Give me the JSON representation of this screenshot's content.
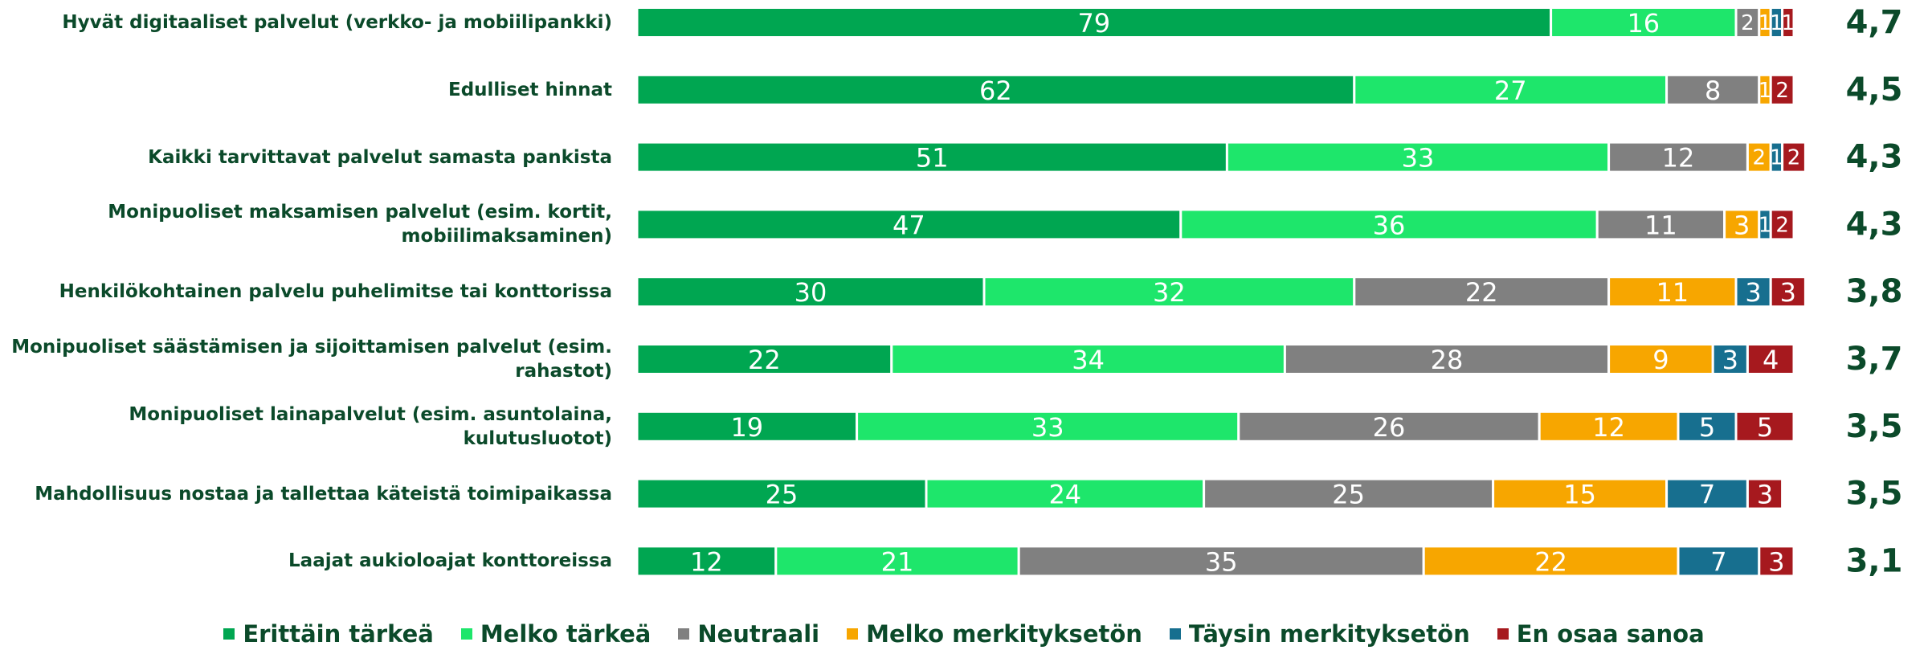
{
  "chart_data": {
    "type": "stacked_bar_horizontal",
    "categories": [
      "Hyvät digitaaliset palvelut (verkko- ja mobiilipankki)",
      "Edulliset hinnat",
      "Kaikki tarvittavat palvelut samasta pankista",
      "Monipuoliset maksamisen palvelut (esim. kortit, mobiilimaksaminen)",
      "Henkilökohtainen palvelu puhelimitse tai konttorissa",
      "Monipuoliset säästämisen ja sijoittamisen palvelut (esim. rahastot)",
      "Monipuoliset lainapalvelut (esim. asuntolaina, kulutusluotot)",
      "Mahdollisuus nostaa ja tallettaa käteistä toimipaikassa",
      "Laajat aukioloajat konttoreissa"
    ],
    "series": [
      {
        "name": "Erittäin tärkeä",
        "color": "#00a651",
        "values": [
          79,
          62,
          51,
          47,
          30,
          22,
          19,
          25,
          12
        ]
      },
      {
        "name": "Melko tärkeä",
        "color": "#1ee66b",
        "values": [
          16,
          27,
          33,
          36,
          32,
          34,
          33,
          24,
          21
        ]
      },
      {
        "name": "Neutraali",
        "color": "#808080",
        "values": [
          2,
          8,
          12,
          11,
          22,
          28,
          26,
          25,
          35
        ]
      },
      {
        "name": "Melko merkityksetön",
        "color": "#f7a600",
        "values": [
          1,
          1,
          2,
          3,
          11,
          9,
          12,
          15,
          22
        ]
      },
      {
        "name": "Täysin merkityksetön",
        "color": "#176f8f",
        "values": [
          1,
          0,
          1,
          1,
          3,
          3,
          5,
          7,
          7
        ]
      },
      {
        "name": "En osaa sanoa",
        "color": "#a6191e",
        "values": [
          1,
          2,
          2,
          2,
          3,
          4,
          5,
          3,
          3
        ]
      }
    ],
    "averages": [
      {
        "value": 4.7,
        "label": "4,7"
      },
      {
        "value": 4.5,
        "label": "4,5"
      },
      {
        "value": 4.3,
        "label": "4,3"
      },
      {
        "value": 4.3,
        "label": "4,3"
      },
      {
        "value": 3.8,
        "label": "3,8"
      },
      {
        "value": 3.7,
        "label": "3,7"
      },
      {
        "value": 3.5,
        "label": "3,5"
      },
      {
        "value": 3.5,
        "label": "3,5"
      },
      {
        "value": 3.1,
        "label": "3,1"
      }
    ],
    "xlim": [
      0,
      100
    ]
  }
}
